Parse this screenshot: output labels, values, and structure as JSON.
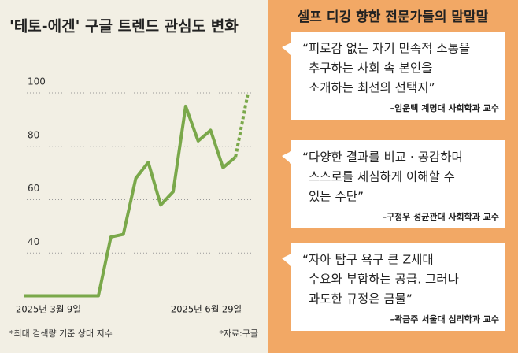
{
  "chart_data": {
    "type": "line",
    "title": "'테토-에겐' 구글 트렌드 관심도 변화",
    "categories": [
      "2025년 3월 9일",
      null,
      null,
      null,
      null,
      null,
      null,
      null,
      null,
      null,
      null,
      null,
      null,
      null,
      null,
      null,
      null,
      "2025년 6월 29일",
      null
    ],
    "series": [
      {
        "color": "#7aa84a",
        "dash": false,
        "values": [
          24,
          24,
          24,
          24,
          24,
          24,
          24,
          46,
          47,
          68,
          74,
          58,
          63,
          95,
          82,
          86,
          72,
          76,
          null
        ]
      },
      {
        "color": "#7aa84a",
        "dash": true,
        "values": [
          null,
          null,
          null,
          null,
          null,
          null,
          null,
          null,
          null,
          null,
          null,
          null,
          null,
          null,
          null,
          null,
          null,
          76,
          100
        ]
      }
    ],
    "ylim": [
      20,
      100
    ],
    "yticks": [
      40,
      60,
      80,
      100
    ],
    "grid": true,
    "notes": [
      "*최대 검색량 기준 상대 지수",
      "*자료:구글"
    ]
  },
  "panel": {
    "title": "셀프 디깅 향한 전문가들의 말말말",
    "quotes": [
      {
        "lines": [
          "“피로감 없는 자기 만족적 소통을",
          "추구하는 사회 속 본인을",
          "소개하는 최선의 선택지”"
        ],
        "source": "–임운택 계명대 사회학과 교수"
      },
      {
        "lines": [
          "“다양한 결과를 비교 · 공감하며",
          "스스로를 세심하게 이해할 수",
          "있는 수단”"
        ],
        "source": "–구정우 성균관대 사회학과 교수"
      },
      {
        "lines": [
          "“자아 탐구 욕구 큰 Z세대",
          "수요와 부합하는 공급. 그러나",
          "과도한 규정은 금물”"
        ],
        "source": "–곽금주 서울대 심리학과 교수"
      }
    ]
  }
}
